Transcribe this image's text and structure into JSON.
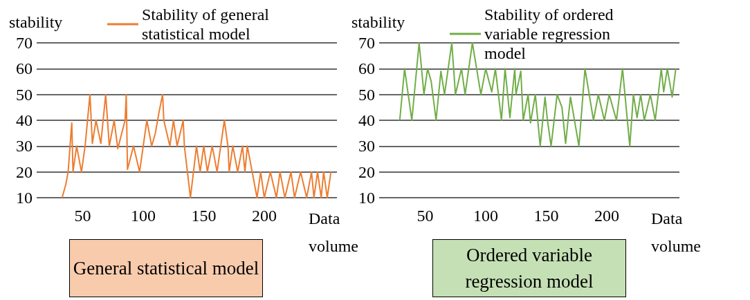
{
  "chart_data": [
    {
      "type": "line",
      "ylabel": "stability",
      "xlabel": "Data volume",
      "legend": "top right",
      "grid": "y",
      "xlim": [
        12,
        260
      ],
      "xticks": [
        50,
        100,
        150,
        200
      ],
      "ylim": [
        10,
        70
      ],
      "yticks": [
        10,
        20,
        30,
        40,
        50,
        60,
        70
      ],
      "annotations": [
        "General statistical model"
      ],
      "series": [
        {
          "name": "Stability of general statistical model",
          "color": "#ed7d31",
          "x": [
            33,
            36,
            38,
            41,
            42,
            45,
            49,
            52,
            56,
            58,
            61,
            65,
            69,
            72,
            76,
            79,
            85,
            86,
            87,
            92,
            97,
            103,
            107,
            110,
            113,
            116,
            117,
            122,
            125,
            128,
            133,
            134,
            139,
            144,
            147,
            150,
            153,
            157,
            161,
            167,
            170,
            171,
            174,
            178,
            182,
            184,
            186,
            194,
            197,
            200,
            205,
            210,
            213,
            217,
            222,
            225,
            230,
            235,
            239,
            241,
            244,
            247,
            249,
            252,
            255
          ],
          "values": [
            10,
            15,
            20,
            39,
            20,
            30,
            20,
            30,
            50,
            31,
            40,
            31,
            50,
            30,
            40,
            29,
            40,
            50,
            21,
            30,
            20,
            40,
            30,
            35,
            43,
            50,
            40,
            30,
            40,
            30,
            40,
            30,
            10,
            30,
            20,
            30,
            20,
            30,
            20,
            40,
            30,
            20,
            30,
            20,
            30,
            20,
            30,
            10,
            20,
            10,
            20,
            10,
            20,
            10,
            20,
            10,
            20,
            10,
            20,
            10,
            20,
            10,
            20,
            10,
            20
          ]
        }
      ]
    },
    {
      "type": "line",
      "ylabel": "stability",
      "xlabel": "Data volume",
      "legend": "top right",
      "grid": "y",
      "xlim": [
        12,
        260
      ],
      "xticks": [
        50,
        100,
        150,
        200
      ],
      "ylim": [
        10,
        70
      ],
      "yticks": [
        10,
        20,
        30,
        40,
        50,
        60,
        70
      ],
      "annotations": [
        "Ordered variable regression model"
      ],
      "series": [
        {
          "name": "Stability of ordered variable regression model",
          "color": "#70ad47",
          "x": [
            29,
            33,
            39,
            45,
            49,
            52,
            55,
            59,
            63,
            66,
            72,
            75,
            80,
            83,
            89,
            96,
            100,
            105,
            108,
            113,
            116,
            120,
            124,
            125,
            129,
            131,
            135,
            137,
            141,
            145,
            149,
            151,
            154,
            159,
            163,
            166,
            170,
            177,
            182,
            189,
            193,
            198,
            202,
            208,
            213,
            219,
            222,
            225,
            228,
            231,
            236,
            240,
            245,
            247,
            250,
            254,
            257
          ],
          "values": [
            40,
            60,
            40,
            70,
            50,
            60,
            55,
            40,
            59,
            50,
            70,
            50,
            60,
            50,
            70,
            50,
            60,
            51,
            60,
            40,
            60,
            41,
            60,
            50,
            59,
            40,
            50,
            39,
            50,
            30,
            49,
            40,
            30,
            50,
            45,
            31,
            49,
            30,
            60,
            40,
            50,
            40,
            50,
            40,
            60,
            30,
            50,
            41,
            50,
            40,
            50,
            40,
            60,
            51,
            60,
            49,
            60
          ]
        }
      ]
    }
  ]
}
